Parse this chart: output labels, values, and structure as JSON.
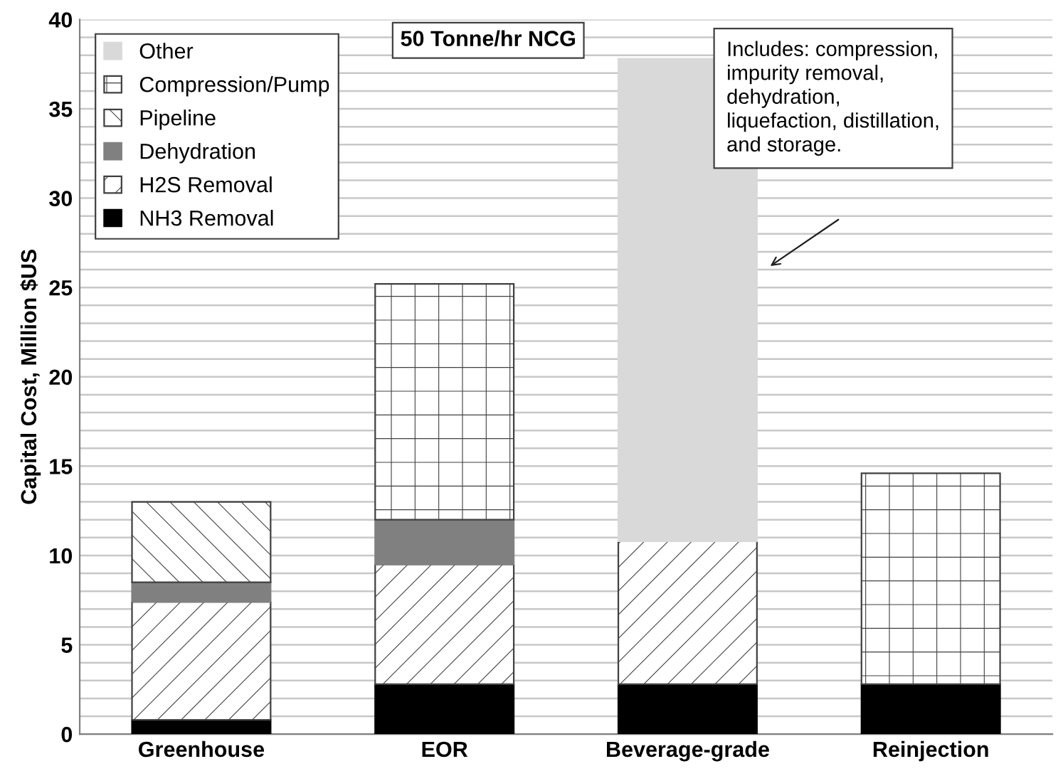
{
  "chart_data": {
    "type": "bar",
    "stacked": true,
    "ylabel": "Capital Cost, Million $US",
    "categories": [
      "Greenhouse",
      "EOR",
      "Beverage-grade",
      "Reinjection"
    ],
    "series": [
      {
        "name": "NH3 Removal",
        "color": "#000000",
        "values": [
          0.8,
          2.8,
          2.8,
          2.8
        ]
      },
      {
        "name": "H2S Removal",
        "color": "#404040",
        "values": [
          6.6,
          6.7,
          8.0,
          null
        ]
      },
      {
        "name": "Dehydration",
        "color": "#808080",
        "values": [
          1.1,
          2.5,
          null,
          null
        ]
      },
      {
        "name": "Pipeline",
        "color": "#404040",
        "values": [
          4.5,
          null,
          null,
          null
        ]
      },
      {
        "name": "Compression/Pump",
        "color": "#404040",
        "values": [
          null,
          13.2,
          null,
          11.8
        ]
      },
      {
        "name": "Other",
        "color": "#d9d9d9",
        "values": [
          null,
          null,
          27.0,
          null
        ]
      }
    ],
    "ylim": [
      0,
      40
    ],
    "yticks": [
      0,
      {
        "value": 1,
        "label": null
      },
      {
        "value": 2,
        "label": null
      },
      {
        "value": 3,
        "label": null
      },
      {
        "value": 4,
        "label": null
      },
      5,
      {
        "value": 6,
        "label": null
      },
      {
        "value": 7,
        "label": null
      },
      {
        "value": 8,
        "label": null
      },
      {
        "value": 9,
        "label": null
      },
      10,
      {
        "value": 11,
        "label": null
      },
      {
        "value": 12,
        "label": null
      },
      {
        "value": 13,
        "label": null
      },
      {
        "value": 14,
        "label": null
      },
      15,
      {
        "value": 16,
        "label": null
      },
      {
        "value": 17,
        "label": null
      },
      {
        "value": 18,
        "label": null
      },
      {
        "value": 19,
        "label": null
      },
      20,
      {
        "value": 21,
        "label": null
      },
      {
        "value": 22,
        "label": null
      },
      {
        "value": 23,
        "label": null
      },
      {
        "value": 24,
        "label": null
      },
      25,
      {
        "value": 26,
        "label": null
      },
      {
        "value": 27,
        "label": null
      },
      {
        "value": 28,
        "label": null
      },
      {
        "value": 29,
        "label": null
      },
      30,
      {
        "value": 31,
        "label": null
      },
      {
        "value": 32,
        "label": null
      },
      {
        "value": 33,
        "label": null
      },
      {
        "value": 34,
        "label": null
      },
      35,
      {
        "value": 36,
        "label": null
      },
      {
        "value": 37,
        "label": null
      },
      {
        "value": 38,
        "label": null
      },
      {
        "value": 39,
        "label": null
      },
      40
    ],
    "grid": "y",
    "legend": "top left",
    "annotations": [
      "50 Tonne/hr NCG",
      "Includes: compression,\nimpurity removal,\ndehydration,\nliquefaction, distillation,\nand storage."
    ]
  }
}
